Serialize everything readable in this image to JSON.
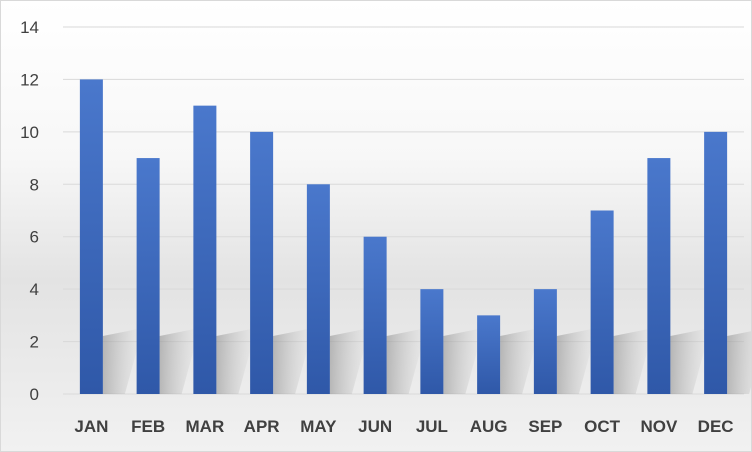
{
  "chart_data": {
    "type": "bar",
    "categories": [
      "JAN",
      "FEB",
      "MAR",
      "APR",
      "MAY",
      "JUN",
      "JUL",
      "AUG",
      "SEP",
      "OCT",
      "NOV",
      "DEC"
    ],
    "values": [
      12,
      9,
      11,
      10,
      8,
      6,
      4,
      3,
      4,
      7,
      9,
      10
    ],
    "yticks": [
      "0",
      "2",
      "4",
      "6",
      "8",
      "10",
      "12",
      "14"
    ],
    "ylim": [
      0,
      14
    ],
    "title": "",
    "xlabel": "",
    "ylabel": "",
    "grid": true,
    "legend": "none",
    "bar_color": "#4472c4",
    "bar_color_dark": "#2f58a8",
    "grid_color": "#d9d9d9"
  }
}
